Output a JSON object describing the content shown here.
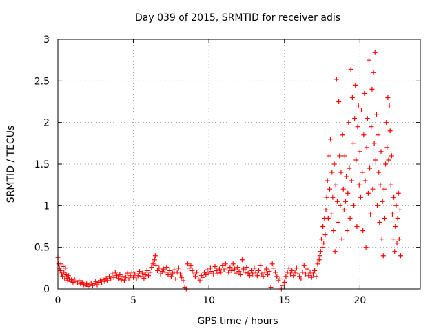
{
  "chart_data": {
    "type": "scatter",
    "title": "Day 039 of 2015, SRMTID for receiver adis",
    "xlabel": "GPS time / hours",
    "ylabel": "SRMTID / TECUs",
    "xlim": [
      0,
      24
    ],
    "ylim": [
      0,
      3
    ],
    "xticks": [
      0,
      5,
      10,
      15,
      20
    ],
    "xtick_labels": [
      "0",
      "5",
      "10",
      "15",
      "20"
    ],
    "yticks": [
      0,
      0.5,
      1,
      1.5,
      2,
      2.5,
      3
    ],
    "ytick_labels": [
      "0",
      "0.5",
      "1",
      "1.5",
      "2",
      "2.5",
      "3"
    ],
    "grid": true,
    "marker": "+",
    "color": "#ff0000",
    "series": [
      {
        "name": "adis",
        "points": [
          [
            0.0,
            0.38
          ],
          [
            0.05,
            0.3
          ],
          [
            0.1,
            0.25
          ],
          [
            0.15,
            0.22
          ],
          [
            0.2,
            0.3
          ],
          [
            0.25,
            0.18
          ],
          [
            0.3,
            0.15
          ],
          [
            0.35,
            0.27
          ],
          [
            0.4,
            0.2
          ],
          [
            0.45,
            0.12
          ],
          [
            0.5,
            0.25
          ],
          [
            0.55,
            0.17
          ],
          [
            0.6,
            0.13
          ],
          [
            0.65,
            0.1
          ],
          [
            0.7,
            0.16
          ],
          [
            0.75,
            0.12
          ],
          [
            0.8,
            0.09
          ],
          [
            0.9,
            0.11
          ],
          [
            1.0,
            0.08
          ],
          [
            1.1,
            0.12
          ],
          [
            1.2,
            0.09
          ],
          [
            1.3,
            0.07
          ],
          [
            1.4,
            0.1
          ],
          [
            1.5,
            0.06
          ],
          [
            1.6,
            0.08
          ],
          [
            1.7,
            0.05
          ],
          [
            1.8,
            0.04
          ],
          [
            1.9,
            0.06
          ],
          [
            2.0,
            0.03
          ],
          [
            2.1,
            0.05
          ],
          [
            2.2,
            0.07
          ],
          [
            2.3,
            0.04
          ],
          [
            2.4,
            0.06
          ],
          [
            2.5,
            0.09
          ],
          [
            2.6,
            0.05
          ],
          [
            2.7,
            0.08
          ],
          [
            2.8,
            0.1
          ],
          [
            2.9,
            0.07
          ],
          [
            3.0,
            0.11
          ],
          [
            3.1,
            0.09
          ],
          [
            3.2,
            0.13
          ],
          [
            3.3,
            0.1
          ],
          [
            3.4,
            0.15
          ],
          [
            3.5,
            0.12
          ],
          [
            3.6,
            0.18
          ],
          [
            3.7,
            0.14
          ],
          [
            3.8,
            0.2
          ],
          [
            3.9,
            0.16
          ],
          [
            4.0,
            0.13
          ],
          [
            4.1,
            0.17
          ],
          [
            4.2,
            0.11
          ],
          [
            4.3,
            0.15
          ],
          [
            4.4,
            0.1
          ],
          [
            4.5,
            0.14
          ],
          [
            4.6,
            0.19
          ],
          [
            4.7,
            0.12
          ],
          [
            4.8,
            0.16
          ],
          [
            4.9,
            0.2
          ],
          [
            5.0,
            0.14
          ],
          [
            5.1,
            0.18
          ],
          [
            5.2,
            0.12
          ],
          [
            5.3,
            0.16
          ],
          [
            5.4,
            0.21
          ],
          [
            5.5,
            0.15
          ],
          [
            5.6,
            0.19
          ],
          [
            5.7,
            0.13
          ],
          [
            5.8,
            0.17
          ],
          [
            5.9,
            0.22
          ],
          [
            6.0,
            0.16
          ],
          [
            6.1,
            0.2
          ],
          [
            6.2,
            0.26
          ],
          [
            6.3,
            0.3
          ],
          [
            6.4,
            0.35
          ],
          [
            6.45,
            0.4
          ],
          [
            6.5,
            0.28
          ],
          [
            6.6,
            0.22
          ],
          [
            6.7,
            0.25
          ],
          [
            6.8,
            0.18
          ],
          [
            6.9,
            0.21
          ],
          [
            7.0,
            0.24
          ],
          [
            7.1,
            0.2
          ],
          [
            7.2,
            0.26
          ],
          [
            7.3,
            0.17
          ],
          [
            7.4,
            0.22
          ],
          [
            7.5,
            0.15
          ],
          [
            7.6,
            0.19
          ],
          [
            7.7,
            0.23
          ],
          [
            7.8,
            0.12
          ],
          [
            7.9,
            0.2
          ],
          [
            8.0,
            0.25
          ],
          [
            8.1,
            0.18
          ],
          [
            8.2,
            0.14
          ],
          [
            8.3,
            0.1
          ],
          [
            8.4,
            0.02
          ],
          [
            8.5,
            0.0
          ],
          [
            8.6,
            0.3
          ],
          [
            8.7,
            0.25
          ],
          [
            8.8,
            0.28
          ],
          [
            8.9,
            0.22
          ],
          [
            9.0,
            0.18
          ],
          [
            9.1,
            0.15
          ],
          [
            9.2,
            0.2
          ],
          [
            9.3,
            0.12
          ],
          [
            9.4,
            0.1
          ],
          [
            9.5,
            0.16
          ],
          [
            9.6,
            0.14
          ],
          [
            9.7,
            0.2
          ],
          [
            9.8,
            0.17
          ],
          [
            9.9,
            0.23
          ],
          [
            10.0,
            0.19
          ],
          [
            10.1,
            0.25
          ],
          [
            10.2,
            0.21
          ],
          [
            10.3,
            0.18
          ],
          [
            10.4,
            0.27
          ],
          [
            10.5,
            0.22
          ],
          [
            10.6,
            0.19
          ],
          [
            10.7,
            0.24
          ],
          [
            10.8,
            0.2
          ],
          [
            10.9,
            0.28
          ],
          [
            11.0,
            0.23
          ],
          [
            11.1,
            0.3
          ],
          [
            11.2,
            0.25
          ],
          [
            11.3,
            0.2
          ],
          [
            11.4,
            0.26
          ],
          [
            11.5,
            0.22
          ],
          [
            11.6,
            0.3
          ],
          [
            11.7,
            0.24
          ],
          [
            11.8,
            0.19
          ],
          [
            11.9,
            0.26
          ],
          [
            12.0,
            0.21
          ],
          [
            12.1,
            0.17
          ],
          [
            12.2,
            0.35
          ],
          [
            12.3,
            0.24
          ],
          [
            12.4,
            0.2
          ],
          [
            12.5,
            0.26
          ],
          [
            12.6,
            0.19
          ],
          [
            12.7,
            0.16
          ],
          [
            12.8,
            0.22
          ],
          [
            12.9,
            0.18
          ],
          [
            13.0,
            0.25
          ],
          [
            13.1,
            0.2
          ],
          [
            13.2,
            0.16
          ],
          [
            13.3,
            0.22
          ],
          [
            13.4,
            0.28
          ],
          [
            13.5,
            0.18
          ],
          [
            13.6,
            0.15
          ],
          [
            13.7,
            0.2
          ],
          [
            13.8,
            0.24
          ],
          [
            13.9,
            0.17
          ],
          [
            14.0,
            0.21
          ],
          [
            14.1,
            0.02
          ],
          [
            14.2,
            0.3
          ],
          [
            14.3,
            0.25
          ],
          [
            14.4,
            0.2
          ],
          [
            14.5,
            0.15
          ],
          [
            14.6,
            0.1
          ],
          [
            14.7,
            0.12
          ],
          [
            14.8,
            0.0
          ],
          [
            14.9,
            0.04
          ],
          [
            15.0,
            0.08
          ],
          [
            15.1,
            0.15
          ],
          [
            15.2,
            0.2
          ],
          [
            15.3,
            0.25
          ],
          [
            15.4,
            0.18
          ],
          [
            15.5,
            0.22
          ],
          [
            15.6,
            0.16
          ],
          [
            15.7,
            0.2
          ],
          [
            15.8,
            0.25
          ],
          [
            15.9,
            0.18
          ],
          [
            16.0,
            0.15
          ],
          [
            16.1,
            0.12
          ],
          [
            16.2,
            0.2
          ],
          [
            16.3,
            0.28
          ],
          [
            16.4,
            0.18
          ],
          [
            16.5,
            0.24
          ],
          [
            16.6,
            0.16
          ],
          [
            16.7,
            0.2
          ],
          [
            16.8,
            0.14
          ],
          [
            16.9,
            0.18
          ],
          [
            17.0,
            0.22
          ],
          [
            17.1,
            0.15
          ],
          [
            17.2,
            0.3
          ],
          [
            17.3,
            0.35
          ],
          [
            17.35,
            0.4
          ],
          [
            17.4,
            0.45
          ],
          [
            17.45,
            0.6
          ],
          [
            17.5,
            0.5
          ],
          [
            17.55,
            0.75
          ],
          [
            17.6,
            0.55
          ],
          [
            17.65,
            0.85
          ],
          [
            17.7,
            0.65
          ],
          [
            17.75,
            0.95
          ],
          [
            17.8,
            1.1
          ],
          [
            17.85,
            1.3
          ],
          [
            17.9,
            0.85
          ],
          [
            17.95,
            1.6
          ],
          [
            18.0,
            1.2
          ],
          [
            18.05,
            1.8
          ],
          [
            18.1,
            0.9
          ],
          [
            18.15,
            1.4
          ],
          [
            18.2,
            1.1
          ],
          [
            18.25,
            0.7
          ],
          [
            18.3,
            1.5
          ],
          [
            18.35,
            0.45
          ],
          [
            18.4,
            1.25
          ],
          [
            18.45,
            2.52
          ],
          [
            18.5,
            1.05
          ],
          [
            18.55,
            0.8
          ],
          [
            18.6,
            2.25
          ],
          [
            18.65,
            1.6
          ],
          [
            18.7,
            1.0
          ],
          [
            18.75,
            1.4
          ],
          [
            18.8,
            0.6
          ],
          [
            18.85,
            1.85
          ],
          [
            18.9,
            1.2
          ],
          [
            18.95,
            0.95
          ],
          [
            19.0,
            1.6
          ],
          [
            19.05,
            1.05
          ],
          [
            19.1,
            1.35
          ],
          [
            19.15,
            0.7
          ],
          [
            19.2,
            1.15
          ],
          [
            19.25,
            2.0
          ],
          [
            19.3,
            1.45
          ],
          [
            19.35,
            0.85
          ],
          [
            19.4,
            2.64
          ],
          [
            19.45,
            1.3
          ],
          [
            19.5,
            2.3
          ],
          [
            19.55,
            1.75
          ],
          [
            19.6,
            1.0
          ],
          [
            19.65,
            2.05
          ],
          [
            19.7,
            2.45
          ],
          [
            19.75,
            1.55
          ],
          [
            19.8,
            0.75
          ],
          [
            19.85,
            1.95
          ],
          [
            19.9,
            2.2
          ],
          [
            19.95,
            1.25
          ],
          [
            20.0,
            1.65
          ],
          [
            20.05,
            1.1
          ],
          [
            20.1,
            2.15
          ],
          [
            20.15,
            1.4
          ],
          [
            20.2,
            0.7
          ],
          [
            20.25,
            1.85
          ],
          [
            20.3,
            2.35
          ],
          [
            20.35,
            1.3
          ],
          [
            20.4,
            0.5
          ],
          [
            20.45,
            1.7
          ],
          [
            20.5,
            2.05
          ],
          [
            20.55,
            1.15
          ],
          [
            20.6,
            2.75
          ],
          [
            20.65,
            1.45
          ],
          [
            20.7,
            0.9
          ],
          [
            20.75,
            1.95
          ],
          [
            20.8,
            2.4
          ],
          [
            20.85,
            1.2
          ],
          [
            20.9,
            2.6
          ],
          [
            20.95,
            1.75
          ],
          [
            21.0,
            2.84
          ],
          [
            21.05,
            1.55
          ],
          [
            21.1,
            2.1
          ],
          [
            21.15,
            1.0
          ],
          [
            21.2,
            1.85
          ],
          [
            21.25,
            1.4
          ],
          [
            21.3,
            0.8
          ],
          [
            21.35,
            1.25
          ],
          [
            21.4,
            1.65
          ],
          [
            21.45,
            0.6
          ],
          [
            21.5,
            1.05
          ],
          [
            21.55,
            0.4
          ],
          [
            21.6,
            1.2
          ],
          [
            21.65,
            0.85
          ],
          [
            21.7,
            1.5
          ],
          [
            21.75,
            2.0
          ],
          [
            21.8,
            1.7
          ],
          [
            21.85,
            2.3
          ],
          [
            21.9,
            1.55
          ],
          [
            21.95,
            2.2
          ],
          [
            22.0,
            1.9
          ],
          [
            22.05,
            1.25
          ],
          [
            22.1,
            1.6
          ],
          [
            22.15,
            0.9
          ],
          [
            22.2,
            0.6
          ],
          [
            22.25,
            1.1
          ],
          [
            22.3,
            0.45
          ],
          [
            22.35,
            0.75
          ],
          [
            22.4,
            1.0
          ],
          [
            22.45,
            0.55
          ],
          [
            22.5,
            0.85
          ],
          [
            22.55,
            1.15
          ],
          [
            22.6,
            0.6
          ],
          [
            22.65,
            0.95
          ],
          [
            22.7,
            0.4
          ]
        ]
      }
    ]
  }
}
